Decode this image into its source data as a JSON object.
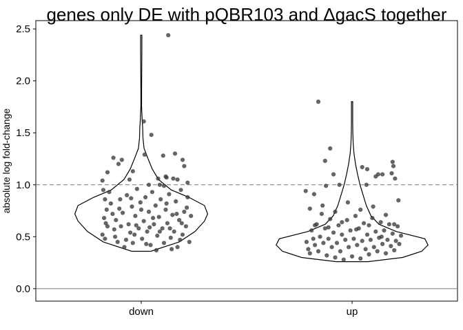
{
  "chart_data": {
    "type": "scatter",
    "title": "genes only DE with pQBR103 and ΔgacS together",
    "xlabel": "",
    "ylabel": "absolute log fold-change",
    "categories": [
      "down",
      "up"
    ],
    "ylim": [
      -0.12,
      2.58
    ],
    "y_ticks": [
      "0.0",
      "0.5",
      "1.0",
      "1.5",
      "2.0",
      "2.5"
    ],
    "y_tick_values": [
      0,
      0.5,
      1,
      1.5,
      2,
      2.5
    ],
    "reference_lines": [
      {
        "y": 1.0,
        "style": "dashed"
      },
      {
        "y": 0.0,
        "style": "solid"
      }
    ],
    "grid": false,
    "colors": {
      "points": "#3a3a3a",
      "violin": "#000000",
      "reference": "#777777"
    },
    "violins": [
      {
        "category": "down",
        "profile": [
          [
            0.36,
            0.06
          ],
          [
            0.45,
            0.24
          ],
          [
            0.55,
            0.34
          ],
          [
            0.65,
            0.4
          ],
          [
            0.72,
            0.42
          ],
          [
            0.8,
            0.4
          ],
          [
            0.88,
            0.3
          ],
          [
            0.95,
            0.19
          ],
          [
            1.05,
            0.11
          ],
          [
            1.15,
            0.07
          ],
          [
            1.25,
            0.043
          ],
          [
            1.35,
            0.018
          ],
          [
            1.45,
            0.011
          ],
          [
            1.55,
            0.009
          ],
          [
            1.62,
            0.006
          ],
          [
            1.75,
            0.002
          ],
          [
            1.9,
            0.002
          ],
          [
            2.1,
            0.003
          ],
          [
            2.3,
            0.004
          ],
          [
            2.44,
            0.004
          ]
        ]
      },
      {
        "category": "up",
        "profile": [
          [
            0.26,
            0.1
          ],
          [
            0.3,
            0.32
          ],
          [
            0.36,
            0.44
          ],
          [
            0.42,
            0.48
          ],
          [
            0.48,
            0.46
          ],
          [
            0.55,
            0.28
          ],
          [
            0.62,
            0.17
          ],
          [
            0.7,
            0.12
          ],
          [
            0.8,
            0.09
          ],
          [
            0.9,
            0.07
          ],
          [
            1.0,
            0.05
          ],
          [
            1.1,
            0.035
          ],
          [
            1.2,
            0.022
          ],
          [
            1.3,
            0.012
          ],
          [
            1.4,
            0.007
          ],
          [
            1.5,
            0.005
          ],
          [
            1.6,
            0.004
          ],
          [
            1.7,
            0.004
          ],
          [
            1.8,
            0.004
          ]
        ]
      }
    ],
    "series": [
      {
        "category": "down",
        "points": [
          [
            -0.46,
            1.04
          ],
          [
            -0.4,
            1.12
          ],
          [
            -0.33,
            1.26
          ],
          [
            -0.27,
            1.2
          ],
          [
            -0.23,
            1.24
          ],
          [
            -0.14,
            1.05
          ],
          [
            -0.1,
            1.13
          ],
          [
            0.04,
            1.29
          ],
          [
            0.2,
            1.06
          ],
          [
            0.29,
            1.08
          ],
          [
            0.43,
            1.05
          ],
          [
            0.4,
            1.3
          ],
          [
            0.49,
            1.24
          ],
          [
            0.51,
            1.18
          ],
          [
            0.3,
            1.07
          ],
          [
            0.12,
            1.48
          ],
          [
            0.26,
            1.28
          ],
          [
            0.38,
            1.06
          ],
          [
            0.32,
            2.44
          ],
          [
            0.03,
            1.61
          ],
          [
            0.22,
            1.0
          ],
          [
            0.09,
            1.0
          ],
          [
            0.27,
            0.99
          ],
          [
            0.55,
            1.02
          ],
          [
            -0.45,
            0.95
          ],
          [
            -0.43,
            0.86
          ],
          [
            -0.41,
            0.76
          ],
          [
            -0.44,
            0.68
          ],
          [
            -0.46,
            0.52
          ],
          [
            -0.43,
            0.48
          ],
          [
            -0.4,
            0.6
          ],
          [
            -0.36,
            0.82
          ],
          [
            -0.34,
            0.72
          ],
          [
            -0.31,
            0.5
          ],
          [
            -0.3,
            0.66
          ],
          [
            -0.28,
            0.45
          ],
          [
            -0.25,
            0.86
          ],
          [
            -0.22,
            0.73
          ],
          [
            -0.2,
            0.4
          ],
          [
            -0.17,
            0.9
          ],
          [
            -0.15,
            0.62
          ],
          [
            -0.13,
            0.54
          ],
          [
            -0.11,
            0.79
          ],
          [
            -0.1,
            0.44
          ],
          [
            -0.07,
            0.7
          ],
          [
            -0.05,
            0.96
          ],
          [
            -0.03,
            0.58
          ],
          [
            -0.01,
            0.83
          ],
          [
            0.01,
            0.48
          ],
          [
            0.03,
            0.65
          ],
          [
            0.05,
            0.88
          ],
          [
            0.07,
            0.55
          ],
          [
            0.09,
            0.74
          ],
          [
            0.11,
            0.42
          ],
          [
            0.13,
            0.93
          ],
          [
            0.15,
            0.62
          ],
          [
            0.17,
            0.8
          ],
          [
            0.19,
            0.51
          ],
          [
            0.21,
            0.69
          ],
          [
            0.23,
            0.86
          ],
          [
            0.25,
            0.58
          ],
          [
            0.27,
            0.44
          ],
          [
            0.29,
            0.76
          ],
          [
            0.31,
            0.63
          ],
          [
            0.33,
            0.91
          ],
          [
            0.35,
            0.49
          ],
          [
            0.37,
            0.71
          ],
          [
            0.39,
            0.55
          ],
          [
            0.41,
            0.84
          ],
          [
            0.43,
            0.4
          ],
          [
            0.45,
            0.66
          ],
          [
            0.47,
            0.95
          ],
          [
            0.49,
            0.52
          ],
          [
            0.51,
            0.74
          ],
          [
            0.53,
            0.6
          ],
          [
            0.55,
            0.88
          ],
          [
            0.57,
            0.45
          ],
          [
            0.59,
            0.7
          ],
          [
            -0.38,
            0.93
          ],
          [
            -0.32,
            0.57
          ],
          [
            -0.26,
            0.77
          ],
          [
            -0.18,
            0.47
          ],
          [
            -0.12,
            0.87
          ],
          [
            -0.06,
            0.61
          ],
          [
            0.0,
            0.76
          ],
          [
            0.06,
            0.43
          ],
          [
            0.14,
            0.68
          ],
          [
            0.22,
            0.55
          ],
          [
            0.3,
            0.82
          ],
          [
            0.36,
            0.38
          ],
          [
            0.42,
            0.72
          ],
          [
            0.48,
            0.63
          ],
          [
            0.54,
            0.78
          ],
          [
            -0.42,
            0.63
          ],
          [
            -0.24,
            0.6
          ],
          [
            -0.08,
            0.52
          ],
          [
            0.1,
            0.59
          ],
          [
            0.18,
            0.37
          ],
          [
            0.34,
            0.58
          ],
          [
            0.46,
            0.47
          ]
        ]
      },
      {
        "category": "up",
        "points": [
          [
            -0.4,
            1.8
          ],
          [
            -0.26,
            1.35
          ],
          [
            -0.32,
            1.23
          ],
          [
            -0.22,
            1.1
          ],
          [
            -0.15,
            1.0
          ],
          [
            0.17,
            1.0
          ],
          [
            0.12,
            1.17
          ],
          [
            0.18,
            1.15
          ],
          [
            0.28,
            1.08
          ],
          [
            0.31,
            1.1
          ],
          [
            0.36,
            1.1
          ],
          [
            0.48,
            1.22
          ],
          [
            0.49,
            1.18
          ],
          [
            0.47,
            1.11
          ],
          [
            0.51,
            1.06
          ],
          [
            -0.55,
            0.94
          ],
          [
            -0.45,
            0.91
          ],
          [
            -0.31,
            0.99
          ],
          [
            -0.54,
            0.45
          ],
          [
            -0.52,
            0.38
          ],
          [
            -0.5,
            0.34
          ],
          [
            -0.48,
            0.56
          ],
          [
            -0.46,
            0.48
          ],
          [
            -0.44,
            0.42
          ],
          [
            -0.42,
            0.62
          ],
          [
            -0.4,
            0.36
          ],
          [
            -0.38,
            0.5
          ],
          [
            -0.36,
            0.72
          ],
          [
            -0.34,
            0.44
          ],
          [
            -0.32,
            0.58
          ],
          [
            -0.3,
            0.32
          ],
          [
            -0.28,
            0.48
          ],
          [
            -0.26,
            0.67
          ],
          [
            -0.24,
            0.4
          ],
          [
            -0.22,
            0.54
          ],
          [
            -0.2,
            0.3
          ],
          [
            -0.18,
            0.44
          ],
          [
            -0.16,
            0.61
          ],
          [
            -0.14,
            0.36
          ],
          [
            -0.12,
            0.52
          ],
          [
            -0.1,
            0.28
          ],
          [
            -0.08,
            0.47
          ],
          [
            -0.06,
            0.66
          ],
          [
            -0.04,
            0.4
          ],
          [
            -0.02,
            0.56
          ],
          [
            0.0,
            0.31
          ],
          [
            0.02,
            0.48
          ],
          [
            0.04,
            0.7
          ],
          [
            0.06,
            0.42
          ],
          [
            0.08,
            0.58
          ],
          [
            0.1,
            0.29
          ],
          [
            0.12,
            0.46
          ],
          [
            0.14,
            0.63
          ],
          [
            0.16,
            0.38
          ],
          [
            0.18,
            0.52
          ],
          [
            0.2,
            0.33
          ],
          [
            0.22,
            0.47
          ],
          [
            0.24,
            0.68
          ],
          [
            0.26,
            0.4
          ],
          [
            0.28,
            0.55
          ],
          [
            0.3,
            0.36
          ],
          [
            0.32,
            0.49
          ],
          [
            0.34,
            0.64
          ],
          [
            0.36,
            0.43
          ],
          [
            0.38,
            0.56
          ],
          [
            0.4,
            0.34
          ],
          [
            0.42,
            0.47
          ],
          [
            0.44,
            0.62
          ],
          [
            0.46,
            0.41
          ],
          [
            0.48,
            0.53
          ],
          [
            0.5,
            0.37
          ],
          [
            0.52,
            0.46
          ],
          [
            0.54,
            0.6
          ],
          [
            0.56,
            0.43
          ],
          [
            0.58,
            0.51
          ],
          [
            -0.5,
            0.77
          ],
          [
            -0.35,
            0.8
          ],
          [
            -0.2,
            0.74
          ],
          [
            -0.05,
            0.83
          ],
          [
            0.1,
            0.76
          ],
          [
            0.25,
            0.79
          ],
          [
            0.4,
            0.71
          ],
          [
            0.55,
            0.85
          ],
          [
            -0.44,
            0.61
          ],
          [
            -0.28,
            0.59
          ],
          [
            -0.12,
            0.64
          ],
          [
            0.05,
            0.57
          ],
          [
            0.2,
            0.61
          ],
          [
            0.35,
            0.5
          ],
          [
            0.5,
            0.62
          ]
        ]
      }
    ]
  }
}
